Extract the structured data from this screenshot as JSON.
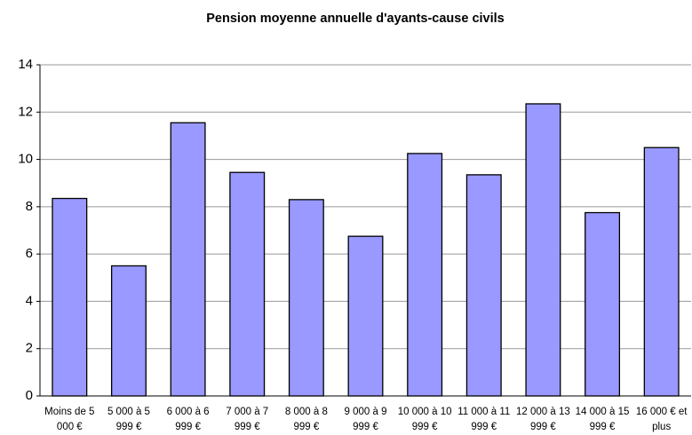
{
  "chart_data": {
    "type": "bar",
    "title": "Pension moyenne annuelle d'ayants-cause civils",
    "categories": [
      "Moins de 5 000 €",
      "5 000 à 5 999 €",
      "6 000 à 6 999 €",
      "7 000 à 7 999 €",
      "8 000 à 8 999 €",
      "9 000 à 9 999 €",
      "10 000 à 10 999 €",
      "11 000 à 11 999 €",
      "12 000 à 13 999 €",
      "14 000 à 15 999 €",
      "16 000 € et plus"
    ],
    "values": [
      8.35,
      5.5,
      11.55,
      9.45,
      8.3,
      6.75,
      10.25,
      9.35,
      12.35,
      7.75,
      10.5
    ],
    "color": "#9999ff",
    "ylim": [
      0,
      14
    ],
    "yticks": [
      0,
      2,
      4,
      6,
      8,
      10,
      12,
      14
    ],
    "grid": true
  }
}
